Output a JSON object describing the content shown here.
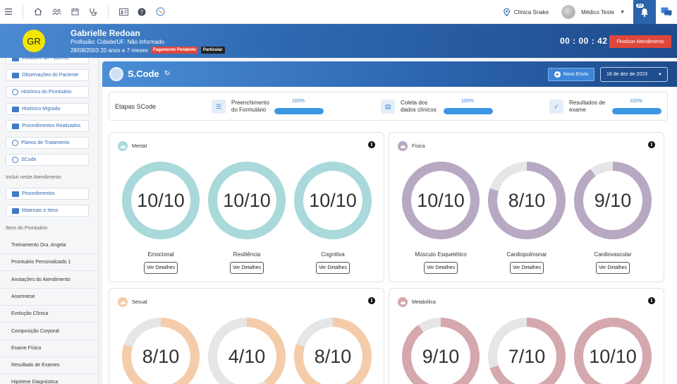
{
  "topbar": {
    "icons": [
      "menu-icon",
      "home-icon",
      "users-icon",
      "calendar-icon",
      "stethoscope-icon",
      "id-card-icon",
      "help-icon",
      "scode-logo-icon"
    ],
    "clinic": "Clínica Snake",
    "user": "Médico Teste",
    "notif_count": "23"
  },
  "patient": {
    "initials": "GR",
    "name": "Gabrielle Redoan",
    "profession": "Profissão:  Cidade/UF: Não informado",
    "birth_age": "28/08/2003  20 anos e 7 meses",
    "badge_payment": "Pagamento Pendente",
    "badge_type": "Particular",
    "timer": "00 : 00 : 42",
    "finish_label": "Finalizar Atendimento"
  },
  "sidebar": {
    "top_buttons": [
      {
        "label": "Cadastro do Paciente",
        "icon": "form-icon"
      },
      {
        "label": "Observações do Paciente",
        "icon": "notes-icon"
      },
      {
        "label": "Histórico do Prontuário",
        "icon": "stethoscope-icon"
      },
      {
        "label": "Histórico Migrado",
        "icon": "history-icon"
      },
      {
        "label": "Procedimentos Realizados",
        "icon": "list-icon"
      },
      {
        "label": "Planos de Tratamento",
        "icon": "stethoscope-icon"
      },
      {
        "label": "SCode",
        "icon": "scode-icon"
      }
    ],
    "include_title": "Incluir neste Atendimento",
    "include_buttons": [
      {
        "label": "Procedimentos",
        "icon": "procedure-icon"
      },
      {
        "label": "Materiais e Itens",
        "icon": "materials-icon"
      }
    ],
    "items_title": "Itens do Prontuário",
    "items": [
      "Treinamento Dra. Angela",
      "Prontuário Personalizado 1",
      "Anotações do Atendimento",
      "Anamnese",
      "Evolução Clínica",
      "Composição Corporal",
      "Exame Físico",
      "Resultado de Exames",
      "Hipótese Diagnóstica"
    ]
  },
  "scode": {
    "title": "S.Code",
    "novo_envio": "Novo Envio",
    "date": "18 de dez de 2023",
    "etapas_title": "Etapas SCode",
    "steps": [
      {
        "label": "Preenchimento do Formulário",
        "pct_label": "100%",
        "pct": 100,
        "icon": "form-list-icon"
      },
      {
        "label": "Coleta dos dados clínicos",
        "pct_label": "100%",
        "pct": 100,
        "icon": "chart-icon"
      },
      {
        "label": "Resultados de exame",
        "pct_label": "100%",
        "pct": 100,
        "icon": "check-icon"
      }
    ],
    "details_label": "Ver Detalhes",
    "cards": [
      {
        "title": "Mental",
        "color": "#a9d9da",
        "icon_color": "#a9d9da",
        "gauges": [
          {
            "label": "Emocional",
            "value": 10,
            "max": 10,
            "text": "10/10"
          },
          {
            "label": "Resiliência",
            "value": 10,
            "max": 10,
            "text": "10/10"
          },
          {
            "label": "Cognitiva",
            "value": 10,
            "max": 10,
            "text": "10/10"
          }
        ]
      },
      {
        "title": "Física",
        "color": "#b8a9c2",
        "icon_color": "#b8a9c2",
        "gauges": [
          {
            "label": "Músculo Esquelético",
            "value": 10,
            "max": 10,
            "text": "10/10"
          },
          {
            "label": "Cardiopulmonar",
            "value": 8,
            "max": 10,
            "text": "8/10"
          },
          {
            "label": "Cardiovascular",
            "value": 9,
            "max": 10,
            "text": "9/10"
          }
        ]
      },
      {
        "title": "Sexual",
        "color": "#f5ccaa",
        "icon_color": "#f5ccaa",
        "gauges": [
          {
            "label": "",
            "value": 8,
            "max": 10,
            "text": "8/10"
          },
          {
            "label": "",
            "value": 4,
            "max": 10,
            "text": "4/10"
          },
          {
            "label": "",
            "value": 8,
            "max": 10,
            "text": "8/10"
          }
        ]
      },
      {
        "title": "Metabólica",
        "color": "#d4a8ad",
        "icon_color": "#d4a8ad",
        "gauges": [
          {
            "label": "",
            "value": 9,
            "max": 10,
            "text": "9/10"
          },
          {
            "label": "",
            "value": 7,
            "max": 10,
            "text": "7/10"
          },
          {
            "label": "",
            "value": 10,
            "max": 10,
            "text": "10/10"
          }
        ]
      }
    ]
  }
}
